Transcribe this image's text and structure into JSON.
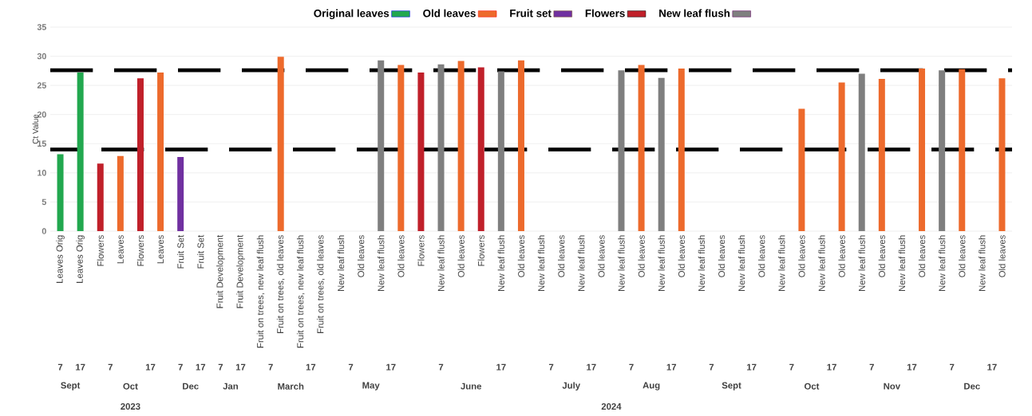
{
  "chart_data": {
    "type": "bar",
    "ylabel": "Ct Value",
    "categories": [
      "Leaves Orig",
      "Leaves Orig",
      "Flowers",
      "Leaves",
      "Flowers",
      "Leaves",
      "Fruit Set",
      "Fruit Set",
      "Fruit Development",
      "Fruit Development",
      "Fruit on trees, new leaf flush",
      "Fruit on trees, old leaves",
      "Fruit on trees, new leaf flush",
      "Fruit on trees, old leaves",
      "New leaf flush",
      "Old leaves",
      "New leaf flush",
      "Old leaves",
      "Flowers",
      "New leaf flush",
      "Old leaves",
      "Flowers",
      "New leaf flush",
      "Old leaves",
      "New leaf flush",
      "Old leaves",
      "New leaf flush",
      "Old leaves",
      "New leaf flush",
      "Old leaves",
      "New leaf flush",
      "Old leaves",
      "New leaf flush",
      "Old leaves",
      "New leaf flush",
      "Old leaves",
      "New leaf flush",
      "Old leaves",
      "New leaf flush",
      "Old leaves",
      "New leaf flush",
      "Old leaves",
      "New leaf flush",
      "Old leaves",
      "New leaf flush",
      "Old leaves",
      "New leaf flush",
      "Old leaves"
    ],
    "series": [
      {
        "name": "Original leaves",
        "color": "#22a84f",
        "values": [
          13.2,
          27.2,
          null,
          null,
          null,
          null,
          null,
          null,
          null,
          null,
          null,
          null,
          null,
          null,
          null,
          null,
          null,
          null,
          null,
          null,
          null,
          null,
          null,
          null,
          null,
          null,
          null,
          null,
          null,
          null,
          null,
          null,
          null,
          null,
          null,
          null,
          null,
          null,
          null,
          null,
          null,
          null,
          null,
          null,
          null,
          null,
          null,
          null
        ]
      },
      {
        "name": "Old leaves",
        "color": "#ed6a2c",
        "values": [
          null,
          null,
          null,
          12.9,
          null,
          27.2,
          null,
          null,
          null,
          null,
          null,
          29.9,
          null,
          null,
          null,
          null,
          null,
          28.5,
          null,
          null,
          29.2,
          null,
          null,
          29.3,
          null,
          null,
          null,
          null,
          null,
          28.5,
          null,
          27.9,
          null,
          null,
          null,
          null,
          null,
          21.0,
          null,
          25.5,
          null,
          26.1,
          null,
          27.9,
          null,
          27.8,
          null,
          26.2
        ]
      },
      {
        "name": "Fruit set",
        "color": "#7030a0",
        "values": [
          null,
          null,
          null,
          null,
          null,
          null,
          12.7,
          null,
          null,
          null,
          null,
          null,
          null,
          null,
          null,
          null,
          null,
          null,
          null,
          null,
          null,
          null,
          null,
          null,
          null,
          null,
          null,
          null,
          null,
          null,
          null,
          null,
          null,
          null,
          null,
          null,
          null,
          null,
          null,
          null,
          null,
          null,
          null,
          null,
          null,
          null,
          null,
          null
        ]
      },
      {
        "name": "Flowers",
        "color": "#c0202a",
        "values": [
          null,
          null,
          11.6,
          null,
          26.2,
          null,
          null,
          null,
          null,
          null,
          null,
          null,
          null,
          null,
          null,
          null,
          null,
          null,
          27.2,
          null,
          null,
          28.1,
          null,
          null,
          null,
          null,
          null,
          null,
          null,
          null,
          null,
          null,
          null,
          null,
          null,
          null,
          null,
          null,
          null,
          null,
          null,
          null,
          null,
          null,
          null,
          null,
          null,
          null
        ]
      },
      {
        "name": "New leaf flush",
        "color": "#7f7f7f",
        "values": [
          null,
          null,
          null,
          null,
          null,
          null,
          null,
          null,
          null,
          null,
          null,
          null,
          null,
          null,
          null,
          null,
          29.3,
          null,
          null,
          28.6,
          null,
          null,
          27.4,
          null,
          null,
          null,
          null,
          null,
          27.6,
          null,
          26.3,
          null,
          null,
          null,
          null,
          null,
          null,
          null,
          null,
          null,
          27.0,
          null,
          null,
          null,
          27.6,
          null,
          null,
          null
        ]
      }
    ],
    "ylim": [
      0,
      35
    ],
    "yticks": [
      0,
      5,
      10,
      15,
      20,
      25,
      30,
      35
    ],
    "grid": "y",
    "legend": "top",
    "ref_lines": [
      {
        "axis": "y",
        "value": 27.6,
        "color": "#000000",
        "line_style": "dashed"
      },
      {
        "axis": "y",
        "value": 14.0,
        "color": "#000000",
        "line_style": "dashed"
      }
    ],
    "annotations": [
      "7",
      "17",
      "7",
      "17",
      "7",
      "17",
      "7",
      "17",
      "7",
      "17",
      "7",
      "17",
      "7",
      "17",
      "7",
      "17",
      "7",
      "17",
      "7",
      "17",
      "7",
      "17",
      "7",
      "17",
      "7",
      "17",
      "Sept",
      "Oct",
      "Dec",
      "Jan",
      "March",
      "May",
      "June",
      "July",
      "Aug",
      "Sept",
      "Oct",
      "Nov",
      "Dec",
      "2023",
      "2024"
    ]
  }
}
